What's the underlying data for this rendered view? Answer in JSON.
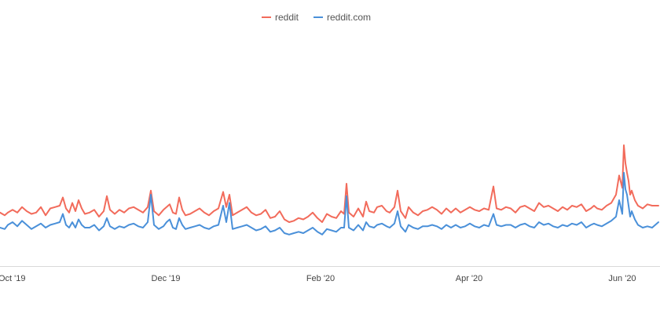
{
  "chart_data": {
    "type": "line",
    "x_axis": {
      "tick_labels": [
        "Oct '19",
        "Dec '19",
        "Feb '20",
        "Apr '20",
        "Jun '20"
      ]
    },
    "legend": {
      "position": "top-center"
    },
    "grid": false,
    "y_range": [
      0,
      100
    ],
    "series": [
      {
        "name": "reddit",
        "color": "#f26b5b",
        "points": [
          [
            0,
            31
          ],
          [
            6,
            29
          ],
          [
            10,
            31
          ],
          [
            16,
            33
          ],
          [
            22,
            31
          ],
          [
            28,
            35
          ],
          [
            34,
            32
          ],
          [
            40,
            30
          ],
          [
            46,
            31
          ],
          [
            52,
            35
          ],
          [
            58,
            29
          ],
          [
            64,
            34
          ],
          [
            70,
            35
          ],
          [
            76,
            36
          ],
          [
            80,
            42
          ],
          [
            84,
            34
          ],
          [
            88,
            31
          ],
          [
            92,
            38
          ],
          [
            96,
            32
          ],
          [
            100,
            40
          ],
          [
            104,
            34
          ],
          [
            108,
            30
          ],
          [
            114,
            31
          ],
          [
            120,
            33
          ],
          [
            126,
            28
          ],
          [
            132,
            32
          ],
          [
            136,
            43
          ],
          [
            140,
            33
          ],
          [
            146,
            30
          ],
          [
            152,
            33
          ],
          [
            158,
            31
          ],
          [
            164,
            34
          ],
          [
            170,
            35
          ],
          [
            176,
            33
          ],
          [
            182,
            31
          ],
          [
            188,
            35
          ],
          [
            192,
            47
          ],
          [
            196,
            32
          ],
          [
            202,
            29
          ],
          [
            208,
            33
          ],
          [
            212,
            35
          ],
          [
            216,
            37
          ],
          [
            220,
            31
          ],
          [
            224,
            30
          ],
          [
            228,
            42
          ],
          [
            232,
            33
          ],
          [
            236,
            29
          ],
          [
            242,
            30
          ],
          [
            248,
            32
          ],
          [
            254,
            34
          ],
          [
            260,
            31
          ],
          [
            266,
            29
          ],
          [
            272,
            32
          ],
          [
            278,
            34
          ],
          [
            284,
            46
          ],
          [
            288,
            35
          ],
          [
            292,
            44
          ],
          [
            296,
            29
          ],
          [
            302,
            31
          ],
          [
            308,
            33
          ],
          [
            314,
            35
          ],
          [
            320,
            31
          ],
          [
            326,
            29
          ],
          [
            332,
            30
          ],
          [
            338,
            33
          ],
          [
            344,
            27
          ],
          [
            350,
            28
          ],
          [
            356,
            32
          ],
          [
            362,
            26
          ],
          [
            368,
            24
          ],
          [
            374,
            25
          ],
          [
            380,
            27
          ],
          [
            386,
            26
          ],
          [
            392,
            28
          ],
          [
            398,
            31
          ],
          [
            404,
            27
          ],
          [
            410,
            24
          ],
          [
            416,
            30
          ],
          [
            422,
            28
          ],
          [
            428,
            27
          ],
          [
            434,
            32
          ],
          [
            438,
            30
          ],
          [
            441,
            52
          ],
          [
            444,
            31
          ],
          [
            450,
            28
          ],
          [
            456,
            34
          ],
          [
            462,
            28
          ],
          [
            466,
            39
          ],
          [
            470,
            32
          ],
          [
            476,
            31
          ],
          [
            480,
            35
          ],
          [
            486,
            36
          ],
          [
            492,
            32
          ],
          [
            496,
            31
          ],
          [
            502,
            35
          ],
          [
            506,
            47
          ],
          [
            510,
            32
          ],
          [
            516,
            27
          ],
          [
            520,
            35
          ],
          [
            526,
            31
          ],
          [
            532,
            29
          ],
          [
            538,
            32
          ],
          [
            544,
            33
          ],
          [
            550,
            35
          ],
          [
            556,
            33
          ],
          [
            562,
            30
          ],
          [
            568,
            34
          ],
          [
            574,
            31
          ],
          [
            580,
            34
          ],
          [
            586,
            31
          ],
          [
            592,
            33
          ],
          [
            598,
            35
          ],
          [
            604,
            33
          ],
          [
            610,
            32
          ],
          [
            616,
            34
          ],
          [
            622,
            33
          ],
          [
            628,
            50
          ],
          [
            632,
            34
          ],
          [
            638,
            33
          ],
          [
            644,
            35
          ],
          [
            650,
            34
          ],
          [
            656,
            31
          ],
          [
            662,
            35
          ],
          [
            668,
            36
          ],
          [
            674,
            34
          ],
          [
            680,
            32
          ],
          [
            686,
            38
          ],
          [
            692,
            35
          ],
          [
            698,
            36
          ],
          [
            704,
            34
          ],
          [
            710,
            32
          ],
          [
            716,
            35
          ],
          [
            722,
            33
          ],
          [
            728,
            36
          ],
          [
            734,
            35
          ],
          [
            740,
            37
          ],
          [
            746,
            32
          ],
          [
            752,
            34
          ],
          [
            756,
            36
          ],
          [
            760,
            34
          ],
          [
            766,
            33
          ],
          [
            772,
            36
          ],
          [
            778,
            38
          ],
          [
            784,
            44
          ],
          [
            788,
            58
          ],
          [
            792,
            49
          ],
          [
            794,
            80
          ],
          [
            796,
            67
          ],
          [
            798,
            60
          ],
          [
            800,
            54
          ],
          [
            802,
            44
          ],
          [
            804,
            47
          ],
          [
            808,
            40
          ],
          [
            812,
            36
          ],
          [
            818,
            34
          ],
          [
            824,
            37
          ],
          [
            830,
            36
          ],
          [
            838,
            36
          ]
        ]
      },
      {
        "name": "reddit.com",
        "color": "#4a90d9",
        "points": [
          [
            0,
            20
          ],
          [
            6,
            19
          ],
          [
            10,
            22
          ],
          [
            16,
            24
          ],
          [
            22,
            21
          ],
          [
            28,
            25
          ],
          [
            34,
            22
          ],
          [
            40,
            19
          ],
          [
            46,
            21
          ],
          [
            52,
            23
          ],
          [
            58,
            20
          ],
          [
            64,
            22
          ],
          [
            70,
            23
          ],
          [
            76,
            24
          ],
          [
            80,
            30
          ],
          [
            84,
            22
          ],
          [
            88,
            20
          ],
          [
            92,
            24
          ],
          [
            96,
            20
          ],
          [
            100,
            26
          ],
          [
            104,
            22
          ],
          [
            108,
            20
          ],
          [
            114,
            20
          ],
          [
            120,
            22
          ],
          [
            126,
            18
          ],
          [
            132,
            21
          ],
          [
            136,
            27
          ],
          [
            140,
            21
          ],
          [
            146,
            19
          ],
          [
            152,
            21
          ],
          [
            158,
            20
          ],
          [
            164,
            22
          ],
          [
            170,
            23
          ],
          [
            176,
            21
          ],
          [
            182,
            20
          ],
          [
            188,
            24
          ],
          [
            192,
            44
          ],
          [
            196,
            22
          ],
          [
            202,
            19
          ],
          [
            208,
            21
          ],
          [
            212,
            24
          ],
          [
            216,
            26
          ],
          [
            220,
            20
          ],
          [
            224,
            19
          ],
          [
            228,
            27
          ],
          [
            232,
            22
          ],
          [
            236,
            19
          ],
          [
            242,
            20
          ],
          [
            248,
            21
          ],
          [
            254,
            22
          ],
          [
            260,
            20
          ],
          [
            266,
            19
          ],
          [
            272,
            21
          ],
          [
            278,
            22
          ],
          [
            284,
            36
          ],
          [
            288,
            24
          ],
          [
            292,
            38
          ],
          [
            296,
            19
          ],
          [
            302,
            20
          ],
          [
            308,
            21
          ],
          [
            314,
            22
          ],
          [
            320,
            20
          ],
          [
            326,
            18
          ],
          [
            332,
            19
          ],
          [
            338,
            21
          ],
          [
            344,
            17
          ],
          [
            350,
            18
          ],
          [
            356,
            20
          ],
          [
            362,
            16
          ],
          [
            368,
            15
          ],
          [
            374,
            16
          ],
          [
            380,
            17
          ],
          [
            386,
            16
          ],
          [
            392,
            18
          ],
          [
            398,
            20
          ],
          [
            404,
            17
          ],
          [
            410,
            15
          ],
          [
            416,
            19
          ],
          [
            422,
            18
          ],
          [
            428,
            17
          ],
          [
            434,
            20
          ],
          [
            438,
            20
          ],
          [
            441,
            43
          ],
          [
            444,
            20
          ],
          [
            450,
            18
          ],
          [
            456,
            22
          ],
          [
            462,
            18
          ],
          [
            466,
            24
          ],
          [
            470,
            21
          ],
          [
            476,
            20
          ],
          [
            480,
            22
          ],
          [
            486,
            23
          ],
          [
            492,
            21
          ],
          [
            496,
            20
          ],
          [
            502,
            23
          ],
          [
            506,
            32
          ],
          [
            510,
            21
          ],
          [
            516,
            17
          ],
          [
            520,
            22
          ],
          [
            526,
            20
          ],
          [
            532,
            19
          ],
          [
            538,
            21
          ],
          [
            544,
            21
          ],
          [
            550,
            22
          ],
          [
            556,
            21
          ],
          [
            562,
            19
          ],
          [
            568,
            22
          ],
          [
            574,
            20
          ],
          [
            580,
            22
          ],
          [
            586,
            20
          ],
          [
            592,
            21
          ],
          [
            598,
            23
          ],
          [
            604,
            21
          ],
          [
            610,
            20
          ],
          [
            616,
            22
          ],
          [
            622,
            21
          ],
          [
            628,
            30
          ],
          [
            632,
            22
          ],
          [
            638,
            21
          ],
          [
            644,
            22
          ],
          [
            650,
            22
          ],
          [
            656,
            20
          ],
          [
            662,
            22
          ],
          [
            668,
            23
          ],
          [
            674,
            21
          ],
          [
            680,
            20
          ],
          [
            686,
            24
          ],
          [
            692,
            22
          ],
          [
            698,
            23
          ],
          [
            704,
            21
          ],
          [
            710,
            20
          ],
          [
            716,
            22
          ],
          [
            722,
            21
          ],
          [
            728,
            23
          ],
          [
            734,
            22
          ],
          [
            740,
            24
          ],
          [
            746,
            20
          ],
          [
            752,
            22
          ],
          [
            756,
            23
          ],
          [
            760,
            22
          ],
          [
            766,
            21
          ],
          [
            772,
            23
          ],
          [
            778,
            25
          ],
          [
            784,
            28
          ],
          [
            788,
            40
          ],
          [
            792,
            30
          ],
          [
            794,
            60
          ],
          [
            796,
            48
          ],
          [
            798,
            44
          ],
          [
            800,
            36
          ],
          [
            802,
            28
          ],
          [
            804,
            32
          ],
          [
            808,
            26
          ],
          [
            812,
            22
          ],
          [
            818,
            20
          ],
          [
            824,
            21
          ],
          [
            830,
            20
          ],
          [
            838,
            24
          ]
        ]
      }
    ]
  }
}
